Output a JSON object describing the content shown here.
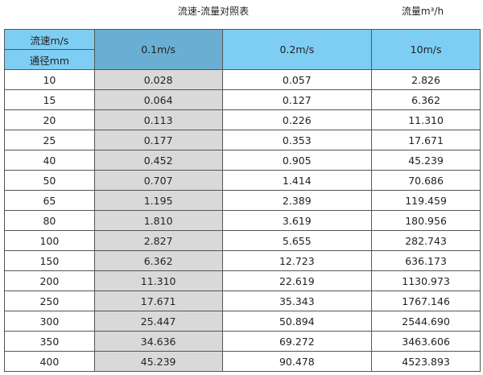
{
  "title": "流速-流量对照表",
  "unit_label": "流量m³/h",
  "header": {
    "velocity_label": "流速m/s",
    "diameter_label": "通径mm",
    "columns": [
      "0.1m/s",
      "0.2m/s",
      "10m/s"
    ]
  },
  "rows": [
    [
      "10",
      "0.028",
      "0.057",
      "2.826"
    ],
    [
      "15",
      "0.064",
      "0.127",
      "6.362"
    ],
    [
      "20",
      "0.113",
      "0.226",
      "11.310"
    ],
    [
      "25",
      "0.177",
      "0.353",
      "17.671"
    ],
    [
      "40",
      "0.452",
      "0.905",
      "45.239"
    ],
    [
      "50",
      "0.707",
      "1.414",
      "70.686"
    ],
    [
      "65",
      "1.195",
      "2.389",
      "119.459"
    ],
    [
      "80",
      "1.810",
      "3.619",
      "180.956"
    ],
    [
      "100",
      "2.827",
      "5.655",
      "282.743"
    ],
    [
      "150",
      "6.362",
      "12.723",
      "636.173"
    ],
    [
      "200",
      "11.310",
      "22.619",
      "1130.973"
    ],
    [
      "250",
      "17.671",
      "35.343",
      "1767.146"
    ],
    [
      "300",
      "25.447",
      "50.894",
      "2544.690"
    ],
    [
      "350",
      "34.636",
      "69.272",
      "3463.606"
    ],
    [
      "400",
      "45.239",
      "90.478",
      "4523.893"
    ]
  ],
  "colors": {
    "header": "#7ecef4",
    "header_highlight": "#6aafd3",
    "column_highlight": "#d9d9d9"
  }
}
